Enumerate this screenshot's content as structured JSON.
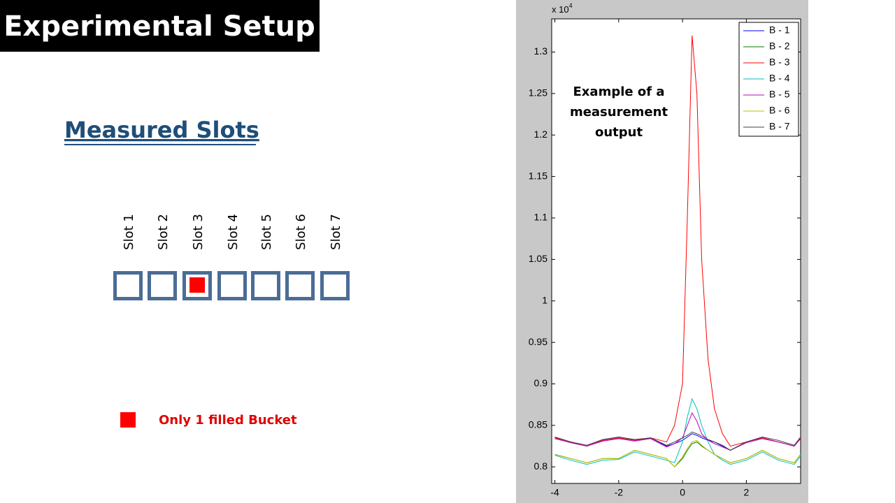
{
  "title": "Experimental Setup",
  "heading": "Measured Slots",
  "slots": {
    "labels": [
      "Slot 1",
      "Slot 2",
      "Slot 3",
      "Slot 4",
      "Slot 5",
      "Slot 6",
      "Slot 7"
    ],
    "filled": [
      false,
      false,
      true,
      false,
      false,
      false,
      false
    ]
  },
  "key_note": "Only 1 filled Bucket",
  "chart_data": {
    "type": "line",
    "multiplier": {
      "base": "x 10",
      "exponent": "4"
    },
    "annotation": [
      "Example of a",
      "measurement",
      "output"
    ],
    "x": [
      -4,
      -3.5,
      -3,
      -2.5,
      -2,
      -1.5,
      -1,
      -0.5,
      -0.25,
      0,
      0.15,
      0.3,
      0.45,
      0.6,
      0.8,
      1,
      1.25,
      1.5,
      2,
      2.5,
      3,
      3.5,
      3.7
    ],
    "series": [
      {
        "name": "B - 1",
        "color": "#0000ff",
        "values": [
          0.835,
          0.83,
          0.825,
          0.832,
          0.835,
          0.832,
          0.835,
          0.825,
          0.828,
          0.832,
          0.836,
          0.84,
          0.838,
          0.835,
          0.832,
          0.83,
          0.825,
          0.82,
          0.83,
          0.835,
          0.83,
          0.825,
          0.835
        ]
      },
      {
        "name": "B - 2",
        "color": "#008000",
        "values": [
          0.815,
          0.81,
          0.805,
          0.81,
          0.81,
          0.82,
          0.815,
          0.81,
          0.8,
          0.81,
          0.82,
          0.828,
          0.83,
          0.825,
          0.82,
          0.815,
          0.81,
          0.805,
          0.81,
          0.82,
          0.81,
          0.805,
          0.815
        ]
      },
      {
        "name": "B - 3",
        "color": "#ff0000",
        "values": [
          0.835,
          0.83,
          0.825,
          0.832,
          0.835,
          0.832,
          0.835,
          0.83,
          0.85,
          0.9,
          1.1,
          1.32,
          1.25,
          1.05,
          0.93,
          0.87,
          0.84,
          0.825,
          0.83,
          0.835,
          0.83,
          0.825,
          0.835
        ]
      },
      {
        "name": "B - 4",
        "color": "#00bfbf",
        "values": [
          0.814,
          0.808,
          0.803,
          0.808,
          0.809,
          0.818,
          0.813,
          0.808,
          0.805,
          0.83,
          0.86,
          0.882,
          0.87,
          0.85,
          0.83,
          0.815,
          0.808,
          0.803,
          0.808,
          0.818,
          0.808,
          0.803,
          0.813
        ]
      },
      {
        "name": "B - 5",
        "color": "#bf00bf",
        "values": [
          0.834,
          0.829,
          0.825,
          0.831,
          0.834,
          0.831,
          0.834,
          0.824,
          0.828,
          0.835,
          0.85,
          0.865,
          0.855,
          0.84,
          0.832,
          0.828,
          0.824,
          0.82,
          0.829,
          0.834,
          0.83,
          0.825,
          0.834
        ]
      },
      {
        "name": "B - 6",
        "color": "#bfbf00",
        "values": [
          0.815,
          0.81,
          0.805,
          0.81,
          0.81,
          0.82,
          0.815,
          0.81,
          0.8,
          0.812,
          0.822,
          0.83,
          0.832,
          0.826,
          0.82,
          0.815,
          0.81,
          0.805,
          0.81,
          0.82,
          0.81,
          0.805,
          0.815
        ]
      },
      {
        "name": "B - 7",
        "color": "#404040",
        "values": [
          0.836,
          0.83,
          0.826,
          0.833,
          0.836,
          0.833,
          0.835,
          0.826,
          0.83,
          0.835,
          0.838,
          0.842,
          0.84,
          0.837,
          0.833,
          0.83,
          0.826,
          0.82,
          0.83,
          0.836,
          0.832,
          0.826,
          0.836
        ]
      }
    ],
    "xlim": [
      -4.1,
      3.7
    ],
    "ylim": [
      0.78,
      1.34
    ],
    "xticks": [
      -4,
      -2,
      0,
      2
    ],
    "yticks": [
      0.8,
      0.85,
      0.9,
      0.95,
      1,
      1.05,
      1.1,
      1.15,
      1.2,
      1.25,
      1.3
    ],
    "legend": "upper right",
    "grid": false
  }
}
